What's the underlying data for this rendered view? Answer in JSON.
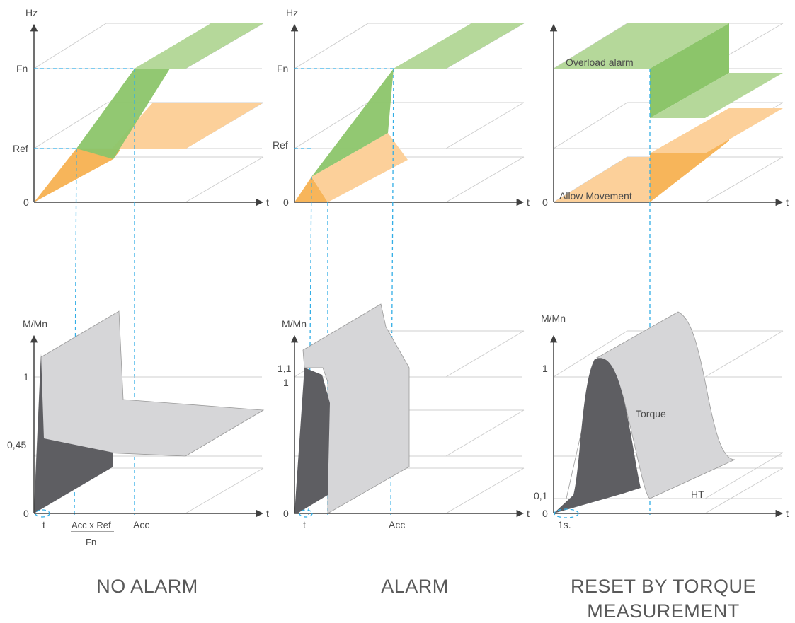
{
  "panels": [
    {
      "caption": [
        "NO ALARM"
      ],
      "top": {
        "y_axis": "Hz",
        "x_axis": "t",
        "ticks": [
          "Fn",
          "Ref",
          "0"
        ]
      },
      "bottom": {
        "y_axis": "M/Mn",
        "x_axis": "t",
        "ticks": [
          "1",
          "0,45",
          "0"
        ],
        "x_ticks": [
          "t",
          "Acc x Ref",
          "Fn",
          "Acc"
        ]
      }
    },
    {
      "caption": [
        "ALARM"
      ],
      "top": {
        "y_axis": "Hz",
        "x_axis": "t",
        "ticks": [
          "Fn",
          "Ref",
          "0"
        ]
      },
      "bottom": {
        "y_axis": "M/Mn",
        "x_axis": "t",
        "ticks": [
          "1,1",
          "1",
          "0"
        ],
        "x_ticks": [
          "t",
          "Acc"
        ]
      }
    },
    {
      "caption": [
        "RESET BY TORQUE",
        "MEASUREMENT"
      ],
      "top": {
        "x_axis": "t",
        "ticks": [
          "0"
        ],
        "labels": [
          "Overload alarm",
          "Allow Movement"
        ]
      },
      "bottom": {
        "y_axis": "M/Mn",
        "x_axis": "t",
        "ticks": [
          "1",
          "0,1",
          "0"
        ],
        "x_ticks": [
          "1s."
        ],
        "labels": [
          "Torque",
          "HT"
        ]
      }
    }
  ],
  "colors": {
    "green": "#8cc56a",
    "green_light": "#b5d89a",
    "orange": "#f7b55a",
    "orange_light": "#fcd09a",
    "dark": "#5e5e62",
    "light": "#d6d6d8",
    "dash": "#33aee6"
  }
}
